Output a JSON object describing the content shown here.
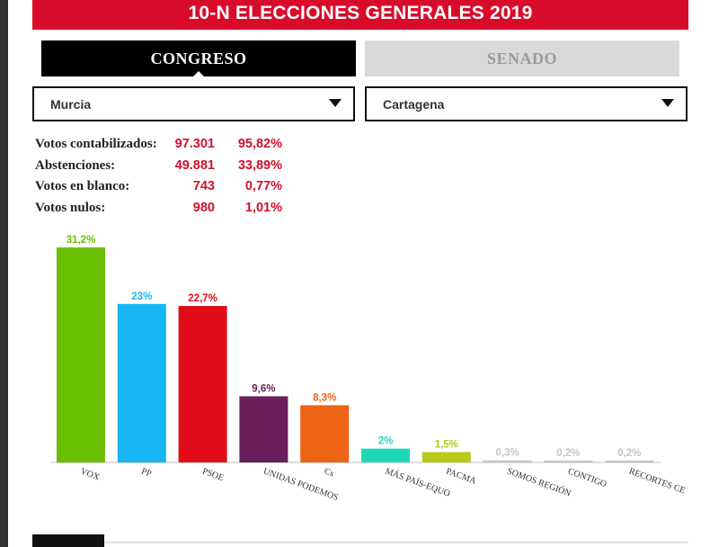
{
  "header": {
    "title": "10-N ELECCIONES GENERALES 2019"
  },
  "tabs": [
    {
      "label": "CONGRESO",
      "active": true
    },
    {
      "label": "SENADO",
      "active": false
    }
  ],
  "selectors": {
    "region": "Murcia",
    "city": "Cartagena"
  },
  "stats": [
    {
      "label": "Votos contabilizados:",
      "value": "97.301",
      "pct": "95,82%"
    },
    {
      "label": "Abstenciones:",
      "value": "49.881",
      "pct": "33,89%"
    },
    {
      "label": "Votos en blanco:",
      "value": "743",
      "pct": "0,77%"
    },
    {
      "label": "Votos nulos:",
      "value": "980",
      "pct": "1,01%"
    }
  ],
  "chart_data": {
    "type": "bar",
    "title": "",
    "xlabel": "",
    "ylabel": "",
    "ylim": [
      0,
      31.2
    ],
    "categories": [
      "VOX",
      "PP",
      "PSOE",
      "UNIDAS PODEMOS",
      "Cs",
      "MÁS PAÍS-EQUO",
      "PACMA",
      "SOMOS REGIÓN",
      "CONTIGO",
      "RECORTES CE"
    ],
    "values": [
      31.2,
      23,
      22.7,
      9.6,
      8.3,
      2,
      1.5,
      0.3,
      0.2,
      0.2
    ],
    "labels": [
      "31,2%",
      "23%",
      "22,7%",
      "9,6%",
      "8,3%",
      "2%",
      "1,5%",
      "0,3%",
      "0,2%",
      "0,2%"
    ],
    "colors": [
      "#6abf00",
      "#18b6f5",
      "#e20c18",
      "#6a1f5c",
      "#ef6414",
      "#1ed9b7",
      "#b7cb18",
      "#c4c4c4",
      "#c4c4c4",
      "#c4c4c4"
    ]
  }
}
